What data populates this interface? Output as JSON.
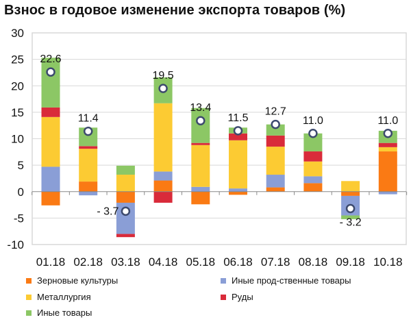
{
  "chart_data": {
    "type": "bar",
    "stacked": true,
    "title": "Взнос в годовое изменение экспорта товаров (%)",
    "categories": [
      "01.18",
      "02.18",
      "03.18",
      "04.18",
      "05.18",
      "06.18",
      "07.18",
      "08.18",
      "09.18",
      "10.18"
    ],
    "ylim": [
      -10,
      30
    ],
    "yticks": [
      -10,
      -5,
      0,
      5,
      10,
      15,
      20,
      25,
      30
    ],
    "grid": true,
    "legend_position": "bottom",
    "series": [
      {
        "name": "Зерновые культуры",
        "color": "#fa7a14",
        "values": [
          -2.6,
          1.9,
          -2.1,
          2.1,
          -2.4,
          -0.6,
          0.8,
          1.6,
          -0.8,
          7.6
        ]
      },
      {
        "name": "Иные прод-ственные товары",
        "color": "#8a9ed6",
        "values": [
          4.7,
          -0.7,
          -5.9,
          1.7,
          0.9,
          0.6,
          2.4,
          1.3,
          -3.7,
          -0.5
        ]
      },
      {
        "name": "Металлургия",
        "color": "#fccb33",
        "values": [
          9.4,
          6.2,
          3.2,
          12.9,
          7.9,
          9.1,
          5.3,
          2.8,
          2.0,
          0.8
        ]
      },
      {
        "name": "Руды",
        "color": "#d92b3a",
        "values": [
          1.8,
          0.5,
          -0.6,
          -2.1,
          0.4,
          1.3,
          2.1,
          1.9,
          0,
          0.8
        ]
      },
      {
        "name": "Иные товары",
        "color": "#8cc765",
        "values": [
          9.4,
          3.5,
          1.7,
          4.9,
          6.6,
          1.1,
          2.1,
          3.4,
          -0.7,
          2.3
        ]
      }
    ],
    "totals": [
      22.6,
      11.4,
      -3.7,
      19.5,
      13.4,
      11.5,
      12.7,
      11.0,
      -3.2,
      11.0
    ],
    "total_labels": [
      "22.6",
      "11.4",
      "- 3.7",
      "19.5",
      "13.4",
      "11.5",
      "12.7",
      "11.0",
      "- 3.2",
      "11.0"
    ]
  }
}
